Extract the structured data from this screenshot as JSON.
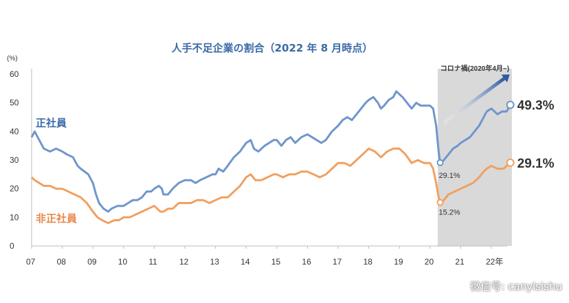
{
  "chart_data": {
    "type": "line",
    "title": "人手不足企業の割合（2022 年 8 月時点）",
    "y_unit": "(%)",
    "ylim": [
      0,
      60
    ],
    "yticks": [
      "0",
      "10",
      "20",
      "30",
      "40",
      "50",
      "60"
    ],
    "xlim": [
      2007,
      2022.9
    ],
    "xticks": [
      {
        "x": 2007,
        "label": "07"
      },
      {
        "x": 2008,
        "label": "08"
      },
      {
        "x": 2009,
        "label": "09"
      },
      {
        "x": 2010,
        "label": "10"
      },
      {
        "x": 2011,
        "label": "11"
      },
      {
        "x": 2012,
        "label": "12"
      },
      {
        "x": 2013,
        "label": "13"
      },
      {
        "x": 2014,
        "label": "14"
      },
      {
        "x": 2015,
        "label": "15"
      },
      {
        "x": 2016,
        "label": "16"
      },
      {
        "x": 2017,
        "label": "17"
      },
      {
        "x": 2018,
        "label": "18"
      },
      {
        "x": 2019,
        "label": "19"
      },
      {
        "x": 2020,
        "label": "20"
      },
      {
        "x": 2021,
        "label": "21"
      },
      {
        "x": 2022,
        "label": "22年"
      }
    ],
    "grid": false,
    "shaded_region": {
      "x_start": 2020.25,
      "x_end": 2022.67,
      "label": "コロナ禍(2020年4月~)",
      "color": "#d9d9d9"
    },
    "series": [
      {
        "name": "正社員",
        "color": "#6f96cc",
        "points": [
          [
            2007.0,
            38
          ],
          [
            2007.1,
            40
          ],
          [
            2007.25,
            37
          ],
          [
            2007.4,
            34
          ],
          [
            2007.6,
            33
          ],
          [
            2007.8,
            34
          ],
          [
            2008.0,
            33
          ],
          [
            2008.15,
            32
          ],
          [
            2008.35,
            31
          ],
          [
            2008.5,
            28
          ],
          [
            2008.6,
            27
          ],
          [
            2008.85,
            25
          ],
          [
            2009.0,
            22
          ],
          [
            2009.1,
            18
          ],
          [
            2009.2,
            15
          ],
          [
            2009.35,
            13
          ],
          [
            2009.5,
            12
          ],
          [
            2009.6,
            13
          ],
          [
            2009.8,
            14
          ],
          [
            2010.0,
            14
          ],
          [
            2010.15,
            15
          ],
          [
            2010.3,
            16
          ],
          [
            2010.45,
            16
          ],
          [
            2010.6,
            17
          ],
          [
            2010.75,
            19
          ],
          [
            2010.9,
            19
          ],
          [
            2011.0,
            20
          ],
          [
            2011.15,
            21
          ],
          [
            2011.25,
            20
          ],
          [
            2011.3,
            18
          ],
          [
            2011.45,
            18
          ],
          [
            2011.6,
            20
          ],
          [
            2011.8,
            22
          ],
          [
            2012.0,
            23
          ],
          [
            2012.2,
            23
          ],
          [
            2012.35,
            22
          ],
          [
            2012.5,
            23
          ],
          [
            2012.7,
            24
          ],
          [
            2012.9,
            25
          ],
          [
            2013.0,
            25
          ],
          [
            2013.1,
            27
          ],
          [
            2013.25,
            26
          ],
          [
            2013.4,
            28
          ],
          [
            2013.6,
            31
          ],
          [
            2013.8,
            33
          ],
          [
            2014.0,
            36
          ],
          [
            2014.15,
            37
          ],
          [
            2014.25,
            34
          ],
          [
            2014.4,
            33
          ],
          [
            2014.6,
            35
          ],
          [
            2014.75,
            36
          ],
          [
            2014.9,
            37
          ],
          [
            2015.0,
            37
          ],
          [
            2015.15,
            35
          ],
          [
            2015.3,
            37
          ],
          [
            2015.45,
            38
          ],
          [
            2015.6,
            36
          ],
          [
            2015.8,
            38
          ],
          [
            2016.0,
            39
          ],
          [
            2016.15,
            38
          ],
          [
            2016.3,
            37
          ],
          [
            2016.45,
            36
          ],
          [
            2016.6,
            37
          ],
          [
            2016.8,
            40
          ],
          [
            2017.0,
            42
          ],
          [
            2017.15,
            44
          ],
          [
            2017.3,
            45
          ],
          [
            2017.45,
            44
          ],
          [
            2017.6,
            46
          ],
          [
            2017.75,
            48
          ],
          [
            2017.9,
            50
          ],
          [
            2018.0,
            51
          ],
          [
            2018.15,
            52
          ],
          [
            2018.3,
            50
          ],
          [
            2018.4,
            48
          ],
          [
            2018.5,
            49
          ],
          [
            2018.65,
            51
          ],
          [
            2018.8,
            52
          ],
          [
            2018.9,
            54
          ],
          [
            2019.0,
            53
          ],
          [
            2019.1,
            52
          ],
          [
            2019.25,
            50
          ],
          [
            2019.4,
            48
          ],
          [
            2019.55,
            50
          ],
          [
            2019.7,
            49
          ],
          [
            2019.85,
            49
          ],
          [
            2020.0,
            49
          ],
          [
            2020.1,
            48
          ],
          [
            2020.2,
            42
          ],
          [
            2020.28,
            33
          ],
          [
            2020.33,
            29.1
          ],
          [
            2020.45,
            30
          ],
          [
            2020.6,
            32
          ],
          [
            2020.75,
            34
          ],
          [
            2020.9,
            35
          ],
          [
            2021.0,
            36
          ],
          [
            2021.15,
            37
          ],
          [
            2021.3,
            38
          ],
          [
            2021.45,
            40
          ],
          [
            2021.6,
            42
          ],
          [
            2021.75,
            45
          ],
          [
            2021.85,
            47
          ],
          [
            2022.0,
            48
          ],
          [
            2022.1,
            47
          ],
          [
            2022.2,
            46
          ],
          [
            2022.35,
            47
          ],
          [
            2022.5,
            47
          ],
          [
            2022.62,
            49.3
          ]
        ]
      },
      {
        "name": "非正社員",
        "color": "#f0a060",
        "points": [
          [
            2007.0,
            24
          ],
          [
            2007.1,
            23
          ],
          [
            2007.25,
            22
          ],
          [
            2007.4,
            21
          ],
          [
            2007.6,
            21
          ],
          [
            2007.8,
            20
          ],
          [
            2008.0,
            20
          ],
          [
            2008.2,
            19
          ],
          [
            2008.4,
            18
          ],
          [
            2008.6,
            17
          ],
          [
            2008.8,
            15
          ],
          [
            2009.0,
            12
          ],
          [
            2009.15,
            10
          ],
          [
            2009.3,
            9
          ],
          [
            2009.5,
            8
          ],
          [
            2009.7,
            9
          ],
          [
            2009.85,
            9
          ],
          [
            2010.0,
            10
          ],
          [
            2010.2,
            10
          ],
          [
            2010.4,
            11
          ],
          [
            2010.6,
            12
          ],
          [
            2010.8,
            13
          ],
          [
            2011.0,
            14
          ],
          [
            2011.1,
            13
          ],
          [
            2011.2,
            12
          ],
          [
            2011.3,
            12
          ],
          [
            2011.45,
            13
          ],
          [
            2011.6,
            13
          ],
          [
            2011.8,
            15
          ],
          [
            2012.0,
            15
          ],
          [
            2012.2,
            15
          ],
          [
            2012.4,
            16
          ],
          [
            2012.6,
            16
          ],
          [
            2012.8,
            15
          ],
          [
            2013.0,
            16
          ],
          [
            2013.2,
            17
          ],
          [
            2013.4,
            17
          ],
          [
            2013.6,
            19
          ],
          [
            2013.8,
            21
          ],
          [
            2014.0,
            24
          ],
          [
            2014.15,
            25
          ],
          [
            2014.3,
            23
          ],
          [
            2014.5,
            23
          ],
          [
            2014.7,
            24
          ],
          [
            2014.9,
            25
          ],
          [
            2015.0,
            25
          ],
          [
            2015.2,
            24
          ],
          [
            2015.4,
            25
          ],
          [
            2015.6,
            25
          ],
          [
            2015.8,
            26
          ],
          [
            2016.0,
            26
          ],
          [
            2016.2,
            25
          ],
          [
            2016.4,
            24
          ],
          [
            2016.6,
            25
          ],
          [
            2016.8,
            27
          ],
          [
            2017.0,
            29
          ],
          [
            2017.2,
            29
          ],
          [
            2017.4,
            28
          ],
          [
            2017.6,
            30
          ],
          [
            2017.8,
            32
          ],
          [
            2018.0,
            34
          ],
          [
            2018.2,
            33
          ],
          [
            2018.4,
            31
          ],
          [
            2018.6,
            33
          ],
          [
            2018.8,
            34
          ],
          [
            2019.0,
            34
          ],
          [
            2019.2,
            32
          ],
          [
            2019.4,
            29
          ],
          [
            2019.6,
            30
          ],
          [
            2019.8,
            29
          ],
          [
            2020.0,
            29
          ],
          [
            2020.1,
            27
          ],
          [
            2020.2,
            22
          ],
          [
            2020.28,
            17
          ],
          [
            2020.33,
            15.2
          ],
          [
            2020.45,
            16
          ],
          [
            2020.6,
            18
          ],
          [
            2020.8,
            19
          ],
          [
            2021.0,
            20
          ],
          [
            2021.2,
            21
          ],
          [
            2021.4,
            22
          ],
          [
            2021.6,
            24
          ],
          [
            2021.75,
            26
          ],
          [
            2021.85,
            27
          ],
          [
            2022.0,
            28
          ],
          [
            2022.2,
            27
          ],
          [
            2022.4,
            27
          ],
          [
            2022.5,
            28
          ],
          [
            2022.62,
            29.1
          ]
        ]
      }
    ],
    "annotations": [
      {
        "text": "正社員",
        "series": 0
      },
      {
        "text": "非正社員",
        "series": 1
      },
      {
        "text": "29.1%",
        "x": 2020.33,
        "y": 29.1,
        "series": 0
      },
      {
        "text": "15.2%",
        "x": 2020.33,
        "y": 15.2,
        "series": 1
      },
      {
        "text": "49.3%",
        "x": 2022.62,
        "y": 49.3,
        "series": 0
      },
      {
        "text": "29.1%",
        "x": 2022.62,
        "y": 29.1,
        "series": 1
      }
    ]
  },
  "watermark": {
    "text": "微信号: canyisishu",
    "icon": "wechat-icon"
  }
}
